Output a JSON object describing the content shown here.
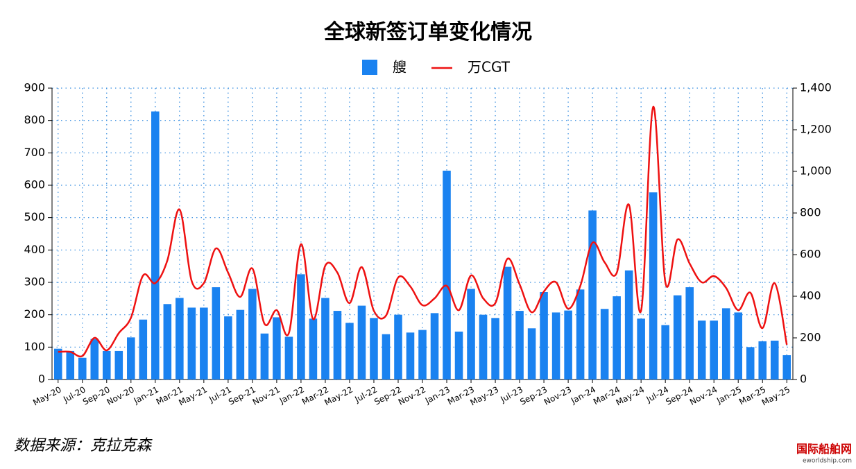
{
  "chart_data": {
    "type": "bar",
    "title": "全球新签订单变化情况",
    "source": "数据来源：克拉克森",
    "watermark": "国际船舶网",
    "watermark_url": "eworldship.com",
    "categories": [
      "May-20",
      null,
      "Jul-20",
      null,
      "Sep-20",
      null,
      "Nov-20",
      null,
      "Jan-21",
      null,
      "Mar-21",
      null,
      "May-21",
      null,
      "Jul-21",
      null,
      "Sep-21",
      null,
      "Nov-21",
      null,
      "Jan-22",
      null,
      "Mar-22",
      null,
      "May-22",
      null,
      "Jul-22",
      null,
      "Sep-22",
      null,
      "Nov-22",
      null,
      "Jan-23",
      null,
      "Mar-23",
      null,
      "May-23",
      null,
      "Jul-23",
      null,
      "Sep-23",
      null,
      "Nov-23",
      null,
      "Jan-24",
      null,
      "Mar-24",
      null,
      "May-24",
      null,
      "Jul-24",
      null,
      "Sep-24",
      null,
      "Nov-24",
      null,
      "Jan-25",
      null,
      "Mar-25",
      null,
      "May-25"
    ],
    "series": [
      {
        "name": "艘",
        "type": "bar",
        "color": "#1a82f0",
        "values": [
          95,
          88,
          67,
          125,
          88,
          88,
          130,
          185,
          828,
          233,
          252,
          222,
          222,
          285,
          195,
          215,
          280,
          142,
          192,
          132,
          325,
          188,
          252,
          212,
          175,
          228,
          190,
          140,
          200,
          145,
          153,
          205,
          645,
          148,
          280,
          200,
          190,
          348,
          212,
          158,
          270,
          207,
          213,
          278,
          522,
          218,
          257,
          337,
          188,
          578,
          168,
          260,
          285,
          182,
          182,
          220,
          207,
          100,
          118,
          120,
          75
        ]
      },
      {
        "name": "万CGT",
        "type": "line",
        "axis": "y2",
        "color": "#ee1111",
        "values": [
          133,
          133,
          113,
          200,
          140,
          223,
          297,
          500,
          463,
          573,
          817,
          473,
          463,
          630,
          513,
          397,
          533,
          267,
          333,
          223,
          650,
          290,
          547,
          513,
          367,
          540,
          330,
          307,
          490,
          447,
          357,
          390,
          450,
          333,
          500,
          390,
          367,
          580,
          457,
          323,
          423,
          467,
          340,
          450,
          657,
          563,
          513,
          840,
          330,
          1310,
          467,
          673,
          557,
          467,
          497,
          440,
          333,
          417,
          247,
          463,
          167
        ]
      }
    ],
    "ylim": [
      0,
      900
    ],
    "yticks": [
      0,
      100,
      200,
      300,
      400,
      500,
      600,
      700,
      800,
      900
    ],
    "y2lim": [
      0,
      1400
    ],
    "y2ticks": [
      0,
      200,
      400,
      600,
      800,
      {
        "value": 1000,
        "label": "1,000"
      },
      {
        "value": 1200,
        "label": "1,200"
      },
      {
        "value": 1400,
        "label": "1,400"
      }
    ],
    "grid": true
  }
}
